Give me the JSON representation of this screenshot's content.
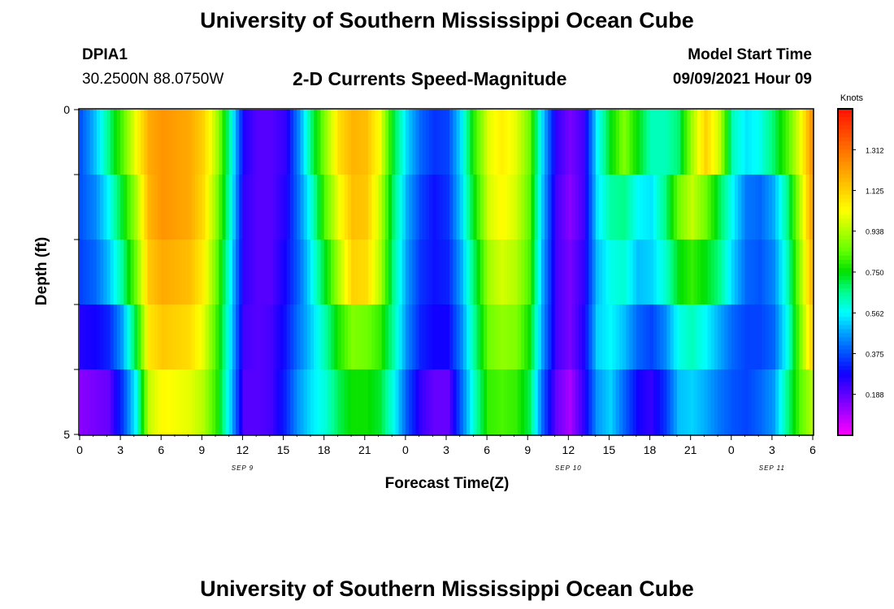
{
  "page": {
    "title_top": "University of Southern Mississippi Ocean Cube",
    "title_bottom": "University of Southern Mississippi Ocean Cube",
    "station": "DPIA1",
    "coords": "30.2500N  88.0750W",
    "plot_title": "2-D Currents Speed-Magnitude",
    "model_start_label": "Model Start Time",
    "model_start_value": "09/09/2021 Hour 09"
  },
  "chart_data": {
    "type": "heatmap",
    "title": "2-D Currents Speed-Magnitude",
    "xlabel": "Forecast Time(Z)",
    "ylabel": "Depth (ft)",
    "x_ticks": [
      "0",
      "3",
      "6",
      "9",
      "12",
      "15",
      "18",
      "21",
      "0",
      "3",
      "6",
      "9",
      "12",
      "15",
      "18",
      "21",
      "0",
      "3",
      "6"
    ],
    "day_labels": [
      {
        "label": "SEP 9",
        "hour": 12
      },
      {
        "label": "SEP 10",
        "hour": 36
      },
      {
        "label": "SEP 11",
        "hour": 51
      }
    ],
    "y_ticks": [
      "0",
      "5"
    ],
    "y_range": [
      0,
      5
    ],
    "hours_range": [
      0,
      54
    ],
    "depth_rows": 5,
    "colorbar": {
      "label": "Knots",
      "ticks": [
        "1.312",
        "1.125",
        "0.938",
        "0.750",
        "0.562",
        "0.375",
        "0.188"
      ],
      "range": [
        0,
        1.5
      ],
      "colors": [
        "#ff00ff",
        "#b000ff",
        "#6000ff",
        "#1000ff",
        "#0050ff",
        "#00a0ff",
        "#00ffff",
        "#00ff90",
        "#00e000",
        "#60ff00",
        "#b0ff00",
        "#ffff00",
        "#ffd000",
        "#ffa000",
        "#ff7000",
        "#ff4000",
        "#ff1000"
      ]
    },
    "series": [
      {
        "name": "depth 0-1 ft",
        "values": [
          0.38,
          0.5,
          0.66,
          0.82,
          1.02,
          1.2,
          1.24,
          1.22,
          1.2,
          1.12,
          0.92,
          0.62,
          0.26,
          0.2,
          0.2,
          0.24,
          0.44,
          0.68,
          0.9,
          1.1,
          1.18,
          1.16,
          1.02,
          0.72,
          0.52,
          0.4,
          0.34,
          0.36,
          0.54,
          0.8,
          1.0,
          1.06,
          1.0,
          0.86,
          0.52,
          0.24,
          0.16,
          0.22,
          0.56,
          0.74,
          0.88,
          0.74,
          0.62,
          0.62,
          0.68,
          0.92,
          1.12,
          0.96,
          0.62,
          0.54,
          0.58,
          0.68,
          0.82,
          1.02,
          1.3
        ]
      },
      {
        "name": "depth 1-2 ft",
        "values": [
          0.38,
          0.44,
          0.56,
          0.72,
          0.92,
          1.18,
          1.24,
          1.22,
          1.2,
          1.1,
          0.88,
          0.6,
          0.24,
          0.2,
          0.2,
          0.26,
          0.42,
          0.6,
          0.84,
          1.02,
          1.16,
          1.14,
          0.96,
          0.68,
          0.48,
          0.36,
          0.3,
          0.34,
          0.52,
          0.76,
          0.98,
          1.04,
          0.98,
          0.84,
          0.5,
          0.22,
          0.14,
          0.22,
          0.54,
          0.64,
          0.66,
          0.56,
          0.54,
          0.66,
          0.86,
          0.96,
          0.86,
          0.7,
          0.56,
          0.42,
          0.4,
          0.48,
          0.66,
          0.96,
          1.28
        ]
      },
      {
        "name": "depth 2-3 ft",
        "values": [
          0.36,
          0.4,
          0.5,
          0.64,
          0.86,
          1.14,
          1.2,
          1.18,
          1.16,
          1.06,
          0.84,
          0.56,
          0.24,
          0.2,
          0.2,
          0.28,
          0.4,
          0.56,
          0.74,
          0.94,
          1.12,
          1.1,
          0.94,
          0.66,
          0.46,
          0.34,
          0.3,
          0.32,
          0.48,
          0.7,
          0.92,
          0.98,
          0.94,
          0.82,
          0.48,
          0.22,
          0.16,
          0.24,
          0.5,
          0.58,
          0.6,
          0.5,
          0.52,
          0.6,
          0.74,
          0.8,
          0.74,
          0.66,
          0.52,
          0.4,
          0.38,
          0.44,
          0.62,
          0.92,
          1.24
        ]
      },
      {
        "name": "depth 3-4 ft",
        "values": [
          0.26,
          0.28,
          0.32,
          0.46,
          0.72,
          1.08,
          1.14,
          1.12,
          1.1,
          1.0,
          0.8,
          0.54,
          0.22,
          0.2,
          0.22,
          0.3,
          0.42,
          0.52,
          0.64,
          0.78,
          0.88,
          0.86,
          0.8,
          0.64,
          0.44,
          0.32,
          0.28,
          0.28,
          0.44,
          0.66,
          0.86,
          0.9,
          0.88,
          0.76,
          0.46,
          0.22,
          0.16,
          0.26,
          0.52,
          0.56,
          0.5,
          0.4,
          0.36,
          0.44,
          0.58,
          0.62,
          0.56,
          0.48,
          0.4,
          0.36,
          0.36,
          0.4,
          0.58,
          0.88,
          1.18
        ]
      },
      {
        "name": "depth 4-5 ft",
        "values": [
          0.14,
          0.16,
          0.18,
          0.34,
          0.56,
          0.96,
          1.04,
          1.02,
          1.0,
          0.94,
          0.78,
          0.52,
          0.2,
          0.2,
          0.22,
          0.32,
          0.46,
          0.54,
          0.6,
          0.7,
          0.76,
          0.76,
          0.72,
          0.58,
          0.38,
          0.24,
          0.18,
          0.18,
          0.4,
          0.62,
          0.8,
          0.82,
          0.8,
          0.7,
          0.4,
          0.18,
          0.1,
          0.24,
          0.46,
          0.52,
          0.4,
          0.28,
          0.24,
          0.34,
          0.5,
          0.52,
          0.48,
          0.42,
          0.38,
          0.36,
          0.4,
          0.46,
          0.66,
          0.84,
          0.96
        ]
      }
    ]
  }
}
